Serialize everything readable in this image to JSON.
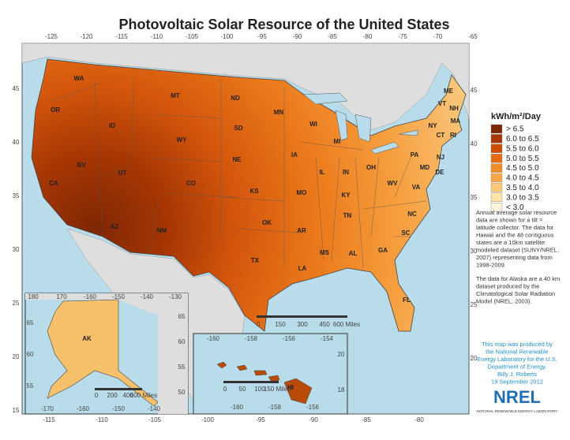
{
  "title": "Photovoltaic Solar Resource of the United States",
  "legend": {
    "title": "kWh/m²/Day",
    "items": [
      {
        "label": "> 6.5",
        "color": "#7f2704"
      },
      {
        "label": "6.0 to 6.5",
        "color": "#a63603"
      },
      {
        "label": "5.5 to 6.0",
        "color": "#cc4c02"
      },
      {
        "label": "5.0 to 5.5",
        "color": "#e86a10"
      },
      {
        "label": "4.5 to 5.0",
        "color": "#f28c28"
      },
      {
        "label": "4.0 to 4.5",
        "color": "#f8a848"
      },
      {
        "label": "3.5 to 4.0",
        "color": "#fcc97a"
      },
      {
        "label": "3.0 to 3.5",
        "color": "#fde3a6"
      },
      {
        "label": "< 3.0",
        "color": "#fff5dc"
      }
    ]
  },
  "notes": [
    [
      "Annual average solar resource",
      "data are shown for a tilt =",
      "latitude collector. The data for",
      "Hawaii and the 48 contiguous",
      "states are a 10km satellite",
      "modeled dataset (SUNY/NREL,",
      "2007) representing data from",
      "1998-2009."
    ],
    [
      "The data for Alaska are a 40 km",
      "dataset produced by the",
      "Climatological Solar Radiation",
      "Model (NREL, 2003)."
    ]
  ],
  "credit": [
    "This map was produced by",
    "the National Renewable",
    "Energy Laboratory for the U.S.",
    "Department of Energy.",
    "Billy J. Roberts",
    "19 September 2012"
  ],
  "logo": "NREL",
  "logo_subtitle": "NATIONAL RENEWABLE ENERGY LABORATORY",
  "states": [
    "WA",
    "OR",
    "ID",
    "MT",
    "WY",
    "NV",
    "UT",
    "CA",
    "AZ",
    "NM",
    "CO",
    "ND",
    "SD",
    "NE",
    "KS",
    "OK",
    "TX",
    "MN",
    "IA",
    "MO",
    "AR",
    "LA",
    "WI",
    "IL",
    "MS",
    "MI",
    "IN",
    "KY",
    "TN",
    "AL",
    "OH",
    "GA",
    "FL",
    "WV",
    "VA",
    "NC",
    "SC",
    "PA",
    "NY",
    "ME",
    "VT",
    "NH",
    "MA",
    "CT",
    "RI",
    "NJ",
    "DE",
    "MD"
  ],
  "longitude_top": [
    -125,
    -120,
    -115,
    -110,
    -105,
    -100,
    -95,
    -90,
    -85,
    -80,
    -75,
    -70,
    -65
  ],
  "longitude_bottom": [
    -115,
    -110,
    -105,
    -100,
    -95,
    -90,
    -85,
    -80
  ],
  "latitude_left": [
    45,
    40,
    35,
    30,
    25,
    20,
    15
  ],
  "latitude_right": [
    45,
    40,
    35,
    30,
    25,
    20
  ],
  "scale_main": [
    "0",
    "150",
    "300",
    "450",
    "600 Miles"
  ],
  "alaska": {
    "label": "AK",
    "scale": [
      "0",
      "200",
      "400",
      "600 Miles"
    ],
    "longitude_top": [
      180,
      170,
      -160,
      -150,
      -140,
      -130
    ],
    "longitude_bottom": [
      -170,
      -160,
      -150,
      -140
    ],
    "latitude_left": [
      65,
      60,
      55
    ],
    "latitude_right": [
      65,
      60,
      55,
      50
    ]
  },
  "hawaii": {
    "label": "HI",
    "scale": [
      "0",
      "50",
      "100",
      "150 Miles"
    ],
    "longitude_top": [
      -160,
      -158,
      -156,
      -154
    ],
    "longitude_bottom": [
      -160,
      -158,
      -156
    ],
    "latitude_right": [
      20,
      18
    ]
  }
}
